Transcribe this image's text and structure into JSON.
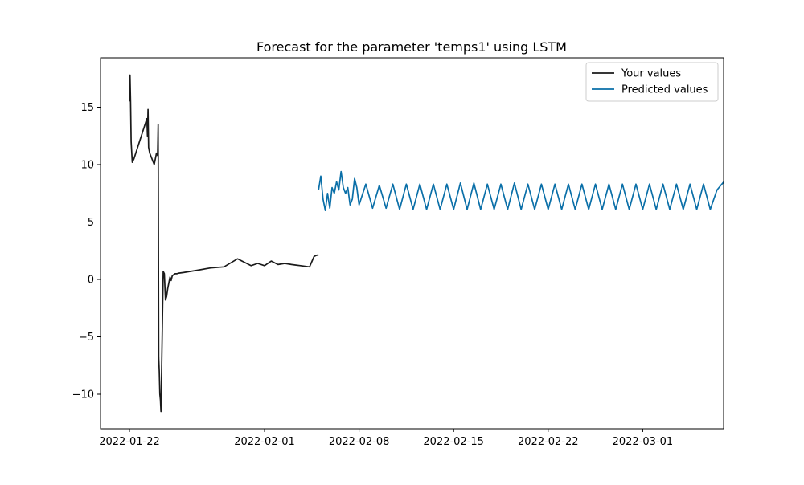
{
  "chart_data": {
    "type": "line",
    "title": "Forecast for the parameter 'temps1' using LSTM",
    "xlabel": "",
    "ylabel": "",
    "x_type": "date",
    "xlim": [
      "2022-01-21",
      "2022-03-05"
    ],
    "ylim": [
      -13,
      19
    ],
    "x_ticks": [
      "2022-01-22",
      "2022-02-01",
      "2022-02-08",
      "2022-02-15",
      "2022-02-22",
      "2022-03-01"
    ],
    "y_ticks": [
      -10,
      -5,
      0,
      5,
      10,
      15
    ],
    "y_tick_labels": [
      "−10",
      "−5",
      "0",
      "5",
      "10",
      "15"
    ],
    "grid": false,
    "legend_position": "top-right",
    "series": [
      {
        "name": "Your values",
        "color": "#1a1a1a",
        "x": [
          "2022-01-22T00:00",
          "2022-01-22T01:00",
          "2022-01-22T02:00",
          "2022-01-22T03:00",
          "2022-01-22T05:00",
          "2022-01-22T08:00",
          "2022-01-23T07:00",
          "2022-01-23T08:00",
          "2022-01-23T09:00",
          "2022-01-23T10:00",
          "2022-01-23T12:00",
          "2022-01-23T16:00",
          "2022-01-23T20:00",
          "2022-01-24T00:00",
          "2022-01-24T02:00",
          "2022-01-24T03:00",
          "2022-01-24T04:00",
          "2022-01-24T05:00",
          "2022-01-24T06:00",
          "2022-01-24T07:00",
          "2022-01-24T08:00",
          "2022-01-24T12:00",
          "2022-01-24T14:00",
          "2022-01-24T16:00",
          "2022-01-24T18:00",
          "2022-01-24T20:00",
          "2022-01-24T22:00",
          "2022-01-25T00:00",
          "2022-01-25T02:00",
          "2022-01-25T04:00",
          "2022-01-25T06:00",
          "2022-01-25T08:00",
          "2022-01-25T09:00",
          "2022-01-25T12:00",
          "2022-01-25T16:00",
          "2022-01-26T00:00",
          "2022-01-27T00:00",
          "2022-01-28T00:00",
          "2022-01-29T00:00",
          "2022-01-30T00:00",
          "2022-01-31T00:00",
          "2022-01-31T12:00",
          "2022-02-01T00:00",
          "2022-02-01T12:00",
          "2022-02-02T00:00",
          "2022-02-02T12:00",
          "2022-02-03T00:00",
          "2022-02-03T08:00",
          "2022-02-03T16:00",
          "2022-02-04T00:00",
          "2022-02-04T08:00",
          "2022-02-04T16:00",
          "2022-02-04T20:00",
          "2022-02-05T00:00"
        ],
        "values": [
          15.5,
          17.8,
          15.5,
          12.0,
          10.2,
          10.5,
          14.0,
          12.5,
          14.8,
          11.5,
          11.0,
          10.5,
          10.0,
          11.0,
          10.8,
          13.5,
          -6.8,
          -8.0,
          -10.0,
          -10.5,
          -11.5,
          0.7,
          0.5,
          -1.8,
          -1.5,
          -0.8,
          -0.3,
          0.2,
          -0.1,
          0.3,
          0.4,
          0.45,
          0.5,
          0.5,
          0.55,
          0.6,
          0.8,
          1.0,
          1.1,
          1.8,
          1.2,
          1.4,
          1.2,
          1.6,
          1.3,
          1.4,
          1.3,
          1.25,
          1.2,
          1.15,
          1.1,
          2.0,
          2.1,
          2.15
        ]
      },
      {
        "name": "Predicted values",
        "color": "#0a6fa8",
        "x": [
          "2022-02-05T00:00",
          "2022-02-05T04:00",
          "2022-02-05T08:00",
          "2022-02-05T12:00",
          "2022-02-05T16:00",
          "2022-02-05T20:00",
          "2022-02-06T00:00",
          "2022-02-06T04:00",
          "2022-02-06T08:00",
          "2022-02-06T12:00",
          "2022-02-06T16:00",
          "2022-02-06T20:00",
          "2022-02-07T00:00",
          "2022-02-07T04:00",
          "2022-02-07T08:00",
          "2022-02-07T12:00",
          "2022-02-07T16:00",
          "2022-02-07T20:00",
          "2022-02-08T00:00",
          "2022-02-08T12:00",
          "2022-02-09T00:00",
          "2022-02-09T12:00",
          "2022-02-10T00:00",
          "2022-02-10T12:00",
          "2022-02-11T00:00",
          "2022-02-11T12:00",
          "2022-02-12T00:00",
          "2022-02-12T12:00",
          "2022-02-13T00:00",
          "2022-02-13T12:00",
          "2022-02-14T00:00",
          "2022-02-14T12:00",
          "2022-02-15T00:00",
          "2022-02-15T12:00",
          "2022-02-16T00:00",
          "2022-02-16T12:00",
          "2022-02-17T00:00",
          "2022-02-17T12:00",
          "2022-02-18T00:00",
          "2022-02-18T12:00",
          "2022-02-19T00:00",
          "2022-02-19T12:00",
          "2022-02-20T00:00",
          "2022-02-20T12:00",
          "2022-02-21T00:00",
          "2022-02-21T12:00",
          "2022-02-22T00:00",
          "2022-02-22T12:00",
          "2022-02-23T00:00",
          "2022-02-23T12:00",
          "2022-02-24T00:00",
          "2022-02-24T12:00",
          "2022-02-25T00:00",
          "2022-02-25T12:00",
          "2022-02-26T00:00",
          "2022-02-26T12:00",
          "2022-02-27T00:00",
          "2022-02-27T12:00",
          "2022-02-28T00:00",
          "2022-02-28T12:00",
          "2022-03-01T00:00",
          "2022-03-01T12:00",
          "2022-03-02T00:00",
          "2022-03-02T12:00",
          "2022-03-03T00:00",
          "2022-03-03T12:00",
          "2022-03-04T00:00",
          "2022-03-04T12:00",
          "2022-03-05T00:00",
          "2022-03-05T12:00",
          "2022-03-06T00:00",
          "2022-03-06T12:00",
          "2022-03-07T00:00"
        ],
        "values": [
          7.8,
          9.0,
          7.0,
          6.0,
          7.5,
          6.2,
          8.0,
          7.5,
          8.5,
          7.8,
          9.4,
          8.0,
          7.5,
          8.0,
          6.5,
          7.0,
          8.8,
          8.0,
          6.5,
          8.3,
          6.2,
          8.2,
          6.2,
          8.3,
          6.1,
          8.3,
          6.1,
          8.3,
          6.1,
          8.3,
          6.1,
          8.3,
          6.1,
          8.4,
          6.1,
          8.4,
          6.1,
          8.3,
          6.1,
          8.3,
          6.1,
          8.4,
          6.1,
          8.3,
          6.1,
          8.3,
          6.1,
          8.3,
          6.1,
          8.3,
          6.1,
          8.3,
          6.1,
          8.3,
          6.1,
          8.3,
          6.1,
          8.3,
          6.1,
          8.3,
          6.1,
          8.3,
          6.1,
          8.3,
          6.1,
          8.3,
          6.1,
          8.3,
          6.1,
          8.3,
          6.1,
          7.8,
          8.5
        ]
      }
    ]
  }
}
